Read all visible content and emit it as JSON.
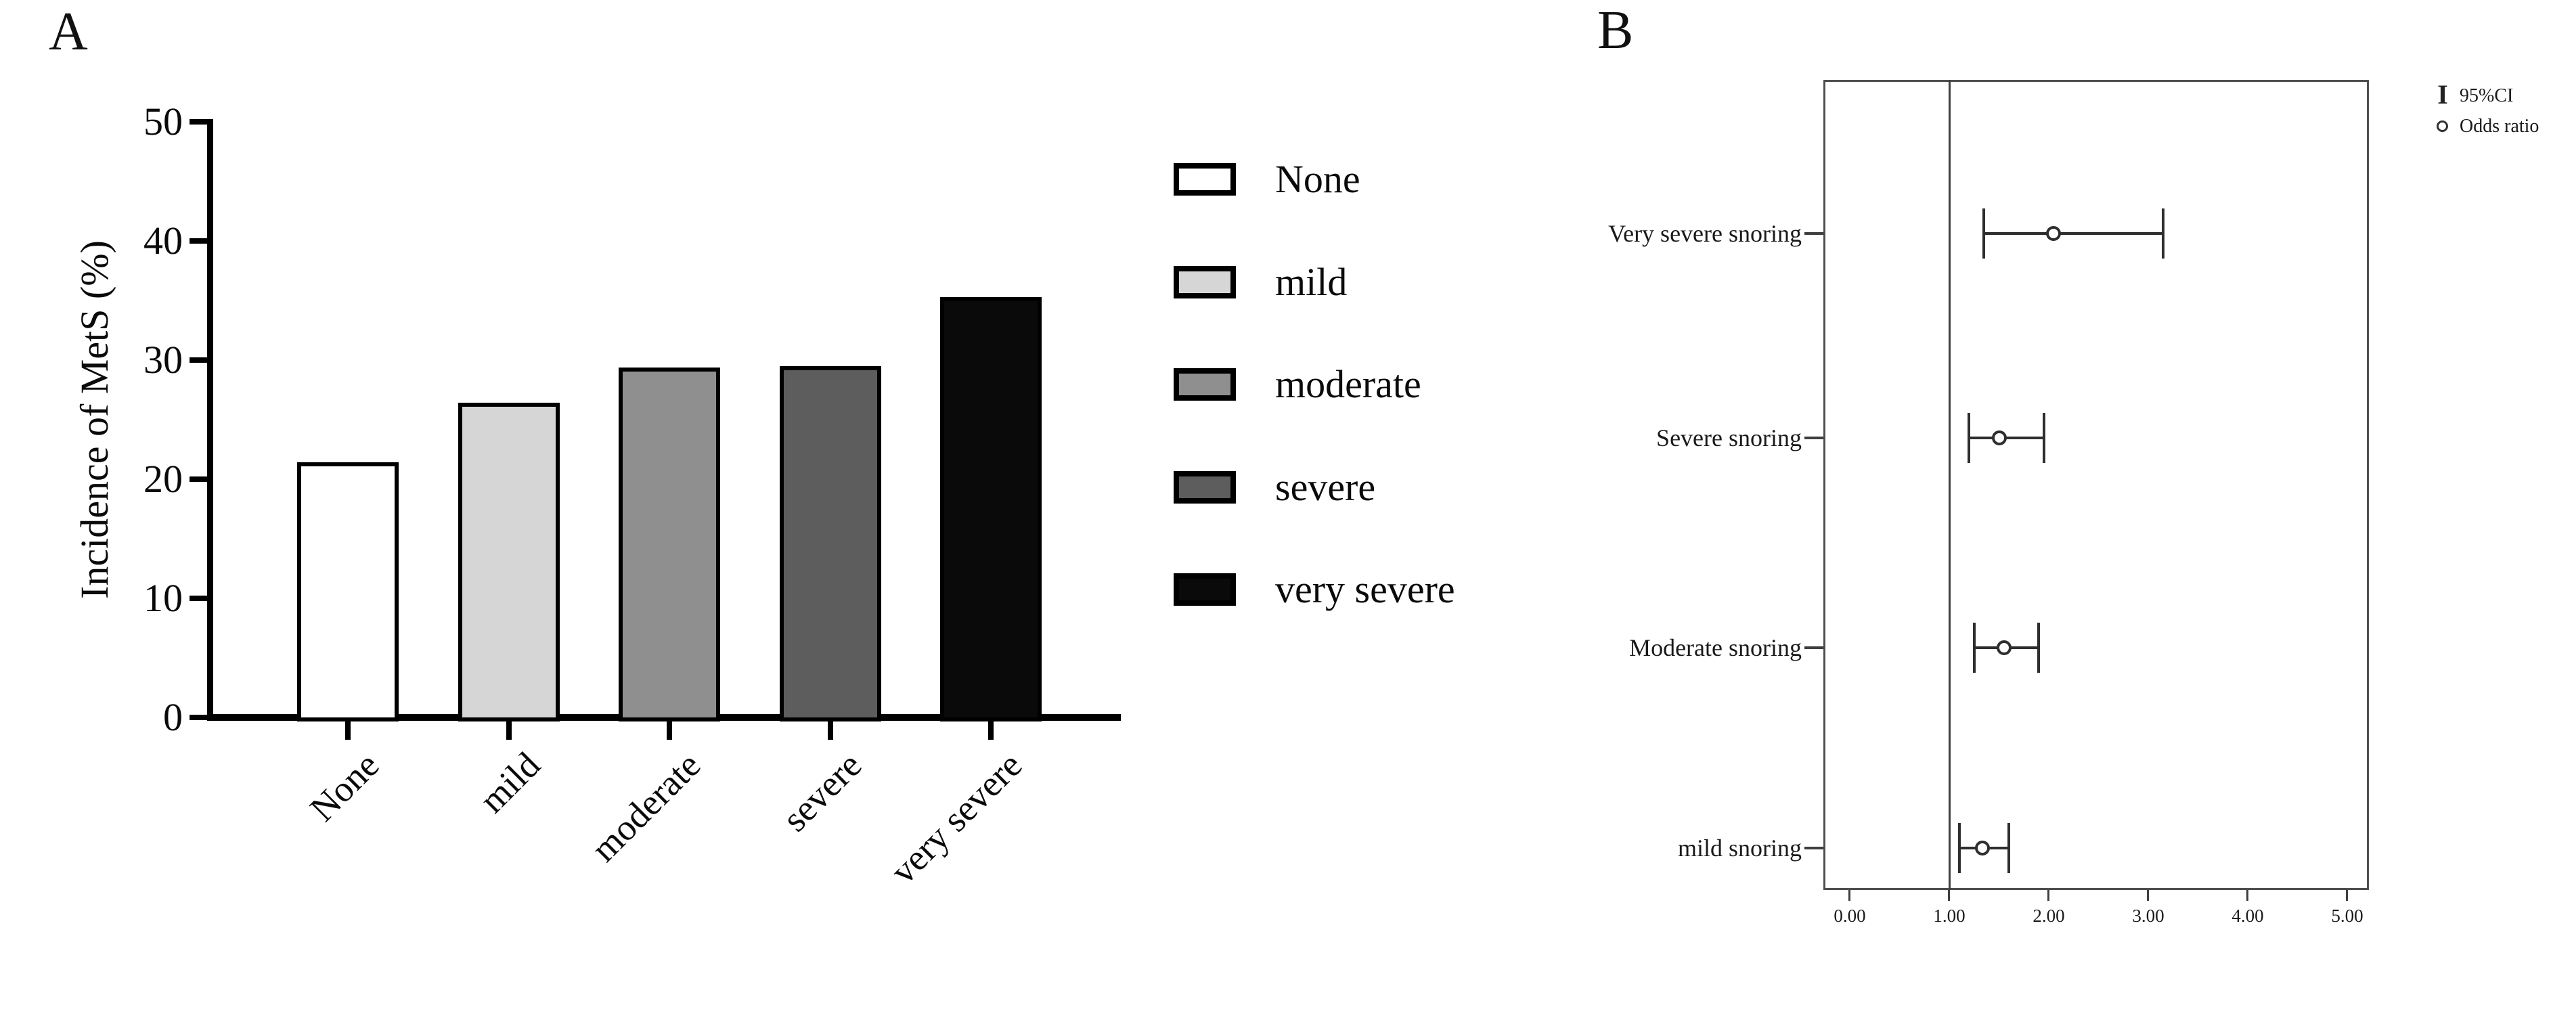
{
  "figure": {
    "panel_a_label": "A",
    "panel_b_label": "B"
  },
  "chart_data": [
    {
      "id": "panel_a",
      "type": "bar",
      "title": "",
      "xlabel": "",
      "ylabel": "Incidence of MetS (%)",
      "ylim": [
        0,
        50
      ],
      "yticks": [
        0,
        10,
        20,
        30,
        40,
        50
      ],
      "ytick_labels": [
        "0",
        "10",
        "20",
        "30",
        "40",
        "50"
      ],
      "categories": [
        "None",
        "mild",
        "moderate",
        "severe",
        "very severe"
      ],
      "values": [
        21.4,
        26.4,
        29.4,
        29.5,
        35.3
      ],
      "bar_colors": [
        "#ffffff",
        "#d6d6d6",
        "#8f8f8f",
        "#5d5d5d",
        "#0a0a0a"
      ],
      "grid": false,
      "legend_position": "right",
      "legend": [
        {
          "label": "None",
          "color": "#ffffff"
        },
        {
          "label": "mild",
          "color": "#d6d6d6"
        },
        {
          "label": "moderate",
          "color": "#8f8f8f"
        },
        {
          "label": "severe",
          "color": "#5d5d5d"
        },
        {
          "label": "very severe",
          "color": "#0a0a0a"
        }
      ]
    },
    {
      "id": "panel_b",
      "type": "scatter",
      "subtype": "forest-plot",
      "xlim": [
        -0.27,
        5.2
      ],
      "xticks": [
        0,
        1,
        2,
        3,
        4,
        5
      ],
      "xtick_labels": [
        "0.00",
        "1.00",
        "2.00",
        "3.00",
        "4.00",
        "5.00"
      ],
      "reference_line_x": 1.0,
      "rows": [
        {
          "label": "Very severe snoring",
          "odds_ratio": 2.05,
          "ci_low": 1.35,
          "ci_high": 3.15
        },
        {
          "label": "Severe snoring",
          "odds_ratio": 1.5,
          "ci_low": 1.2,
          "ci_high": 1.95
        },
        {
          "label": "Moderate snoring",
          "odds_ratio": 1.55,
          "ci_low": 1.25,
          "ci_high": 1.9
        },
        {
          "label": "mild snoring",
          "odds_ratio": 1.33,
          "ci_low": 1.1,
          "ci_high": 1.6
        }
      ],
      "legend": [
        {
          "symbol": "error-bar",
          "label": "95%CI"
        },
        {
          "symbol": "circle",
          "label": "Odds ratio"
        }
      ],
      "marker_color": "#2e2e2e"
    }
  ]
}
